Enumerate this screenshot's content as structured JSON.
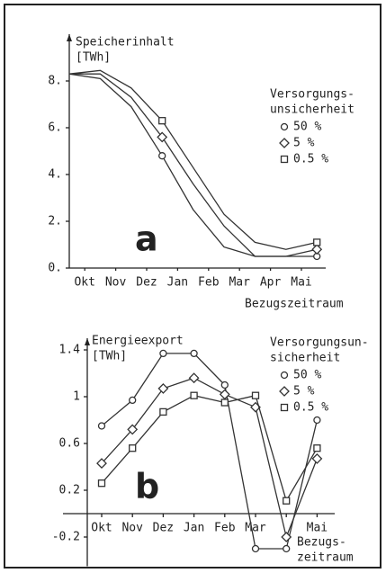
{
  "chart_data": [
    {
      "type": "line",
      "ylabel": [
        "Speicherinhalt",
        "[TWh]"
      ],
      "xlabel": [
        "Bezugszeitraum"
      ],
      "annotation": "a",
      "legend_title": [
        "Versorgungs-",
        "unsicherheit"
      ],
      "x": [
        0,
        1,
        2,
        3,
        4,
        5,
        6,
        7,
        8
      ],
      "xlim": [
        0,
        8.3
      ],
      "xticks": [
        {
          "value": 0.5,
          "label": "Okt"
        },
        {
          "value": 1.5,
          "label": "Nov"
        },
        {
          "value": 2.5,
          "label": "Dez"
        },
        {
          "value": 3.5,
          "label": "Jan"
        },
        {
          "value": 4.5,
          "label": "Feb"
        },
        {
          "value": 5.5,
          "label": "Mar"
        },
        {
          "value": 6.5,
          "label": "Apr"
        },
        {
          "value": 7.5,
          "label": "Mai"
        }
      ],
      "ylim": [
        0,
        10
      ],
      "yticks": [
        {
          "value": 0,
          "label": "0."
        },
        {
          "value": 2,
          "label": "2."
        },
        {
          "value": 4,
          "label": "4."
        },
        {
          "value": 6,
          "label": "6."
        },
        {
          "value": 8,
          "label": "8."
        }
      ],
      "series": [
        {
          "name": "50 %",
          "marker": "circle",
          "color": "#333333",
          "values": [
            8.3,
            8.1,
            6.9,
            4.8,
            2.5,
            0.9,
            0.5,
            0.5,
            0.5
          ]
        },
        {
          "name": "5 %",
          "marker": "diamond",
          "color": "#333333",
          "values": [
            8.3,
            8.3,
            7.3,
            5.6,
            3.6,
            1.8,
            0.5,
            0.5,
            0.8
          ]
        },
        {
          "name": "0.5 %",
          "marker": "square",
          "color": "#333333",
          "values": [
            8.3,
            8.45,
            7.7,
            6.3,
            4.3,
            2.3,
            1.1,
            0.8,
            1.1
          ]
        }
      ]
    },
    {
      "type": "line",
      "ylabel": [
        "Energieexport",
        "[TWh]"
      ],
      "xlabel": [
        "Bezugs-",
        "zeitraum"
      ],
      "annotation": "b",
      "legend_title": [
        "Versorgungsun-",
        "sicherheit"
      ],
      "categories": [
        "Okt",
        "Nov",
        "Dez",
        "Jan",
        "Feb",
        "Mar",
        null,
        "Mai"
      ],
      "ylim": [
        -0.45,
        1.5
      ],
      "yticks": [
        -0.2,
        0.2,
        0.6,
        1.0,
        1.4
      ],
      "series": [
        {
          "name": "50 %",
          "marker": "circle",
          "color": "#333333",
          "values": [
            0.75,
            0.97,
            1.37,
            1.37,
            1.1,
            -0.3,
            -0.3,
            0.8
          ]
        },
        {
          "name": "5 %",
          "marker": "diamond",
          "color": "#333333",
          "values": [
            0.43,
            0.72,
            1.07,
            1.16,
            1.02,
            0.91,
            -0.2,
            0.47
          ]
        },
        {
          "name": "0.5 %",
          "marker": "square",
          "color": "#333333",
          "values": [
            0.26,
            0.56,
            0.87,
            1.01,
            0.95,
            1.01,
            0.11,
            0.56
          ]
        }
      ]
    }
  ]
}
